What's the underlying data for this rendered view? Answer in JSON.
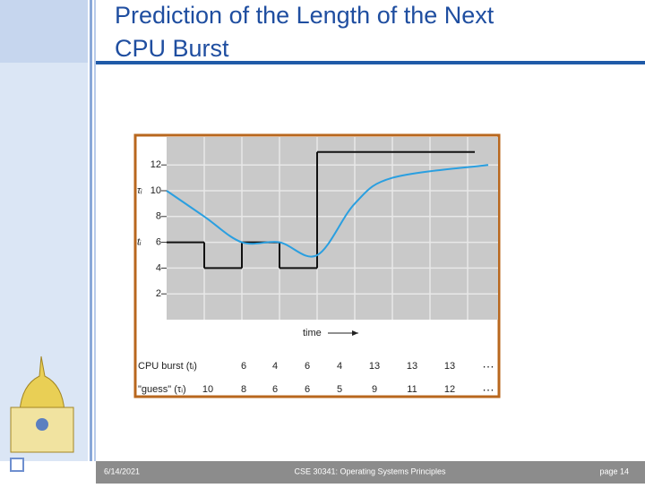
{
  "slide_title_line1": "Prediction of the Length of the Next",
  "slide_title_line2": "CPU Burst",
  "footer": {
    "date": "6/14/2021",
    "course": "CSE 30341: Operating Systems Principles",
    "page": "page 14"
  },
  "chart_data": {
    "type": "line",
    "xlabel": "time",
    "tau_axis_label": "τᵢ",
    "t_axis_label": "tᵢ",
    "ellipsis": "…",
    "ylim": [
      0,
      14
    ],
    "yticks": [
      2,
      4,
      6,
      8,
      10,
      12
    ],
    "grid": true,
    "series": [
      {
        "name": "CPU burst (tᵢ)",
        "color": "#111111",
        "values": [
          6,
          4,
          6,
          4,
          13,
          13,
          13
        ]
      },
      {
        "name": "\"guess\" (τᵢ)",
        "color": "#2a9fe0",
        "values": [
          10,
          8,
          6,
          6,
          5,
          9,
          11,
          12
        ]
      }
    ]
  }
}
